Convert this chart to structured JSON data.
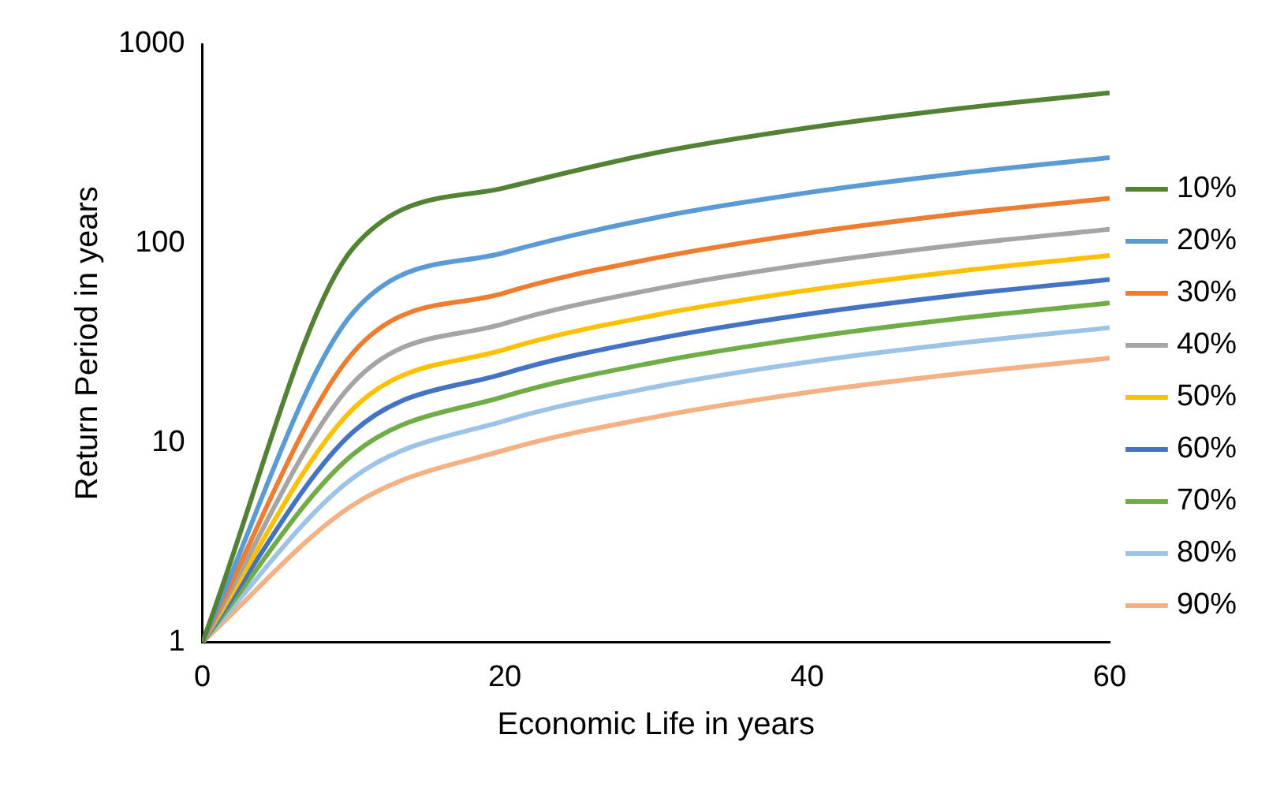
{
  "chart_data": {
    "type": "line",
    "xlabel": "Economic Life in years",
    "ylabel": "Return Period in years",
    "x": [
      0,
      10,
      20,
      30,
      40,
      50,
      60
    ],
    "log": "y",
    "xlim": [
      0,
      60
    ],
    "xticks": [
      0,
      20,
      40,
      60
    ],
    "ylim": [
      1,
      1000
    ],
    "yticks": [
      1,
      10,
      100,
      1000
    ],
    "grid": false,
    "legend": "right",
    "marker": "none",
    "series": [
      {
        "name": "10%",
        "color": "#548235",
        "values": [
          1,
          95.4,
          190.3,
          285.2,
          380.1,
          475.1,
          570.0
        ]
      },
      {
        "name": "20%",
        "color": "#5b9bd5",
        "values": [
          1,
          45.3,
          90.1,
          134.9,
          179.8,
          224.6,
          269.4
        ]
      },
      {
        "name": "30%",
        "color": "#ed7d31",
        "values": [
          1,
          28.5,
          56.6,
          84.6,
          112.7,
          140.7,
          168.7
        ]
      },
      {
        "name": "40%",
        "color": "#a5a5a5",
        "values": [
          1,
          20.1,
          39.7,
          59.2,
          78.8,
          98.4,
          118.0
        ]
      },
      {
        "name": "50%",
        "color": "#ffc000",
        "values": [
          1,
          14.9,
          29.4,
          43.8,
          58.2,
          72.6,
          87.1
        ]
      },
      {
        "name": "60%",
        "color": "#4472c4",
        "values": [
          1,
          11.4,
          22.3,
          33.2,
          44.2,
          55.1,
          66.0
        ]
      },
      {
        "name": "70%",
        "color": "#70ad47",
        "values": [
          1,
          8.8,
          17.1,
          25.4,
          33.7,
          42.0,
          50.3
        ]
      },
      {
        "name": "80%",
        "color": "#9dc3e6",
        "values": [
          1,
          6.7,
          12.9,
          19.1,
          25.4,
          31.6,
          37.8
        ]
      },
      {
        "name": "90%",
        "color": "#f4b183",
        "values": [
          1,
          4.9,
          9.2,
          13.5,
          17.9,
          22.2,
          26.6
        ]
      }
    ]
  }
}
